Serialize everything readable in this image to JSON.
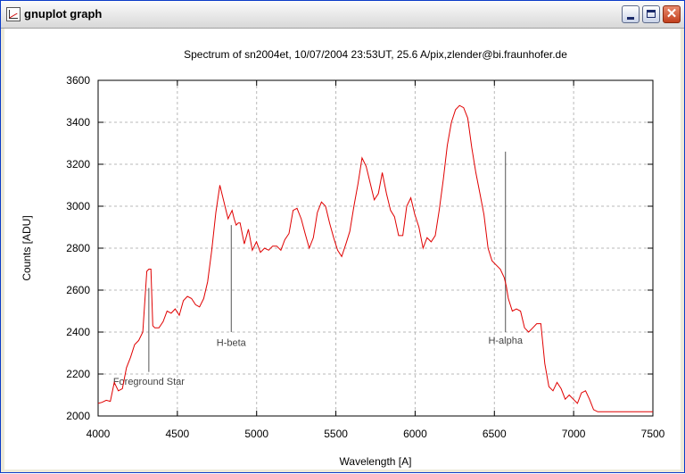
{
  "window": {
    "title": "gnuplot graph",
    "close_glyph": "✕"
  },
  "chart_data": {
    "type": "line",
    "title": "Spectrum of sn2004et, 10/07/2004 23:53UT, 25.6 A/pix,zlender@bi.fraunhofer.de",
    "xlabel": "Wavelength [A]",
    "ylabel": "Counts [ADU]",
    "xlim": [
      4000,
      7500
    ],
    "ylim": [
      2000,
      3600
    ],
    "xticks": [
      4000,
      4500,
      5000,
      5500,
      6000,
      6500,
      7000,
      7500
    ],
    "yticks": [
      2000,
      2200,
      2400,
      2600,
      2800,
      3000,
      3200,
      3400,
      3600
    ],
    "grid": true,
    "line_color": "#e00000",
    "series": [
      {
        "x": [
          4000,
          4025,
          4051,
          4077,
          4102,
          4128,
          4153,
          4179,
          4205,
          4230,
          4256,
          4282,
          4307,
          4320,
          4333,
          4345,
          4358,
          4384,
          4410,
          4435,
          4461,
          4486,
          4512,
          4538,
          4563,
          4589,
          4615,
          4640,
          4666,
          4691,
          4717,
          4743,
          4768,
          4794,
          4820,
          4832,
          4845,
          4858,
          4871,
          4884,
          4896,
          4922,
          4948,
          4973,
          4999,
          5024,
          5050,
          5076,
          5101,
          5127,
          5153,
          5178,
          5204,
          5230,
          5255,
          5281,
          5306,
          5332,
          5358,
          5383,
          5409,
          5435,
          5460,
          5486,
          5511,
          5537,
          5563,
          5588,
          5614,
          5640,
          5665,
          5691,
          5717,
          5742,
          5768,
          5793,
          5819,
          5845,
          5870,
          5896,
          5922,
          5947,
          5973,
          5998,
          6024,
          6050,
          6075,
          6101,
          6127,
          6152,
          6178,
          6203,
          6229,
          6255,
          6280,
          6306,
          6332,
          6357,
          6383,
          6409,
          6434,
          6460,
          6485,
          6511,
          6537,
          6562,
          6575,
          6588,
          6613,
          6639,
          6665,
          6690,
          6716,
          6742,
          6767,
          6793,
          6818,
          6844,
          6870,
          6895,
          6921,
          6947,
          6972,
          6998,
          7024,
          7049,
          7075,
          7100,
          7126,
          7152,
          7177,
          7203,
          7229,
          7254,
          7280,
          7306,
          7331,
          7357,
          7382,
          7408,
          7434,
          7459,
          7485,
          7500
        ],
        "y": [
          2060,
          2065,
          2075,
          2070,
          2160,
          2120,
          2130,
          2230,
          2280,
          2340,
          2360,
          2400,
          2690,
          2700,
          2700,
          2430,
          2420,
          2420,
          2450,
          2500,
          2490,
          2510,
          2480,
          2550,
          2570,
          2560,
          2530,
          2520,
          2560,
          2640,
          2790,
          2970,
          3100,
          3020,
          2940,
          2960,
          2980,
          2940,
          2910,
          2920,
          2920,
          2820,
          2890,
          2790,
          2830,
          2780,
          2800,
          2790,
          2810,
          2810,
          2790,
          2840,
          2870,
          2980,
          2990,
          2940,
          2870,
          2800,
          2850,
          2970,
          3020,
          3000,
          2920,
          2850,
          2790,
          2760,
          2820,
          2880,
          3000,
          3110,
          3230,
          3190,
          3110,
          3030,
          3060,
          3160,
          3060,
          2980,
          2950,
          2860,
          2860,
          3000,
          3040,
          2960,
          2900,
          2800,
          2850,
          2830,
          2860,
          2980,
          3130,
          3290,
          3400,
          3460,
          3480,
          3470,
          3420,
          3280,
          3160,
          3060,
          2960,
          2800,
          2740,
          2720,
          2700,
          2660,
          2620,
          2560,
          2500,
          2510,
          2500,
          2420,
          2400,
          2420,
          2440,
          2440,
          2250,
          2140,
          2120,
          2160,
          2130,
          2080,
          2100,
          2080,
          2060,
          2110,
          2120,
          2080,
          2030,
          2020,
          2020,
          2020,
          2020,
          2020,
          2020,
          2020,
          2020,
          2020,
          2020,
          2020,
          2020,
          2020,
          2020,
          2020
        ]
      }
    ],
    "annotations": [
      {
        "text": "Foreground Star",
        "x": 4320,
        "line_from": 2210,
        "line_to": 2610,
        "label_y": 2150
      },
      {
        "text": "H-beta",
        "x": 4840,
        "line_from": 2400,
        "line_to": 2910,
        "label_y": 2335
      },
      {
        "text": "H-alpha",
        "x": 6570,
        "line_from": 2400,
        "line_to": 3260,
        "label_y": 2345
      }
    ]
  }
}
